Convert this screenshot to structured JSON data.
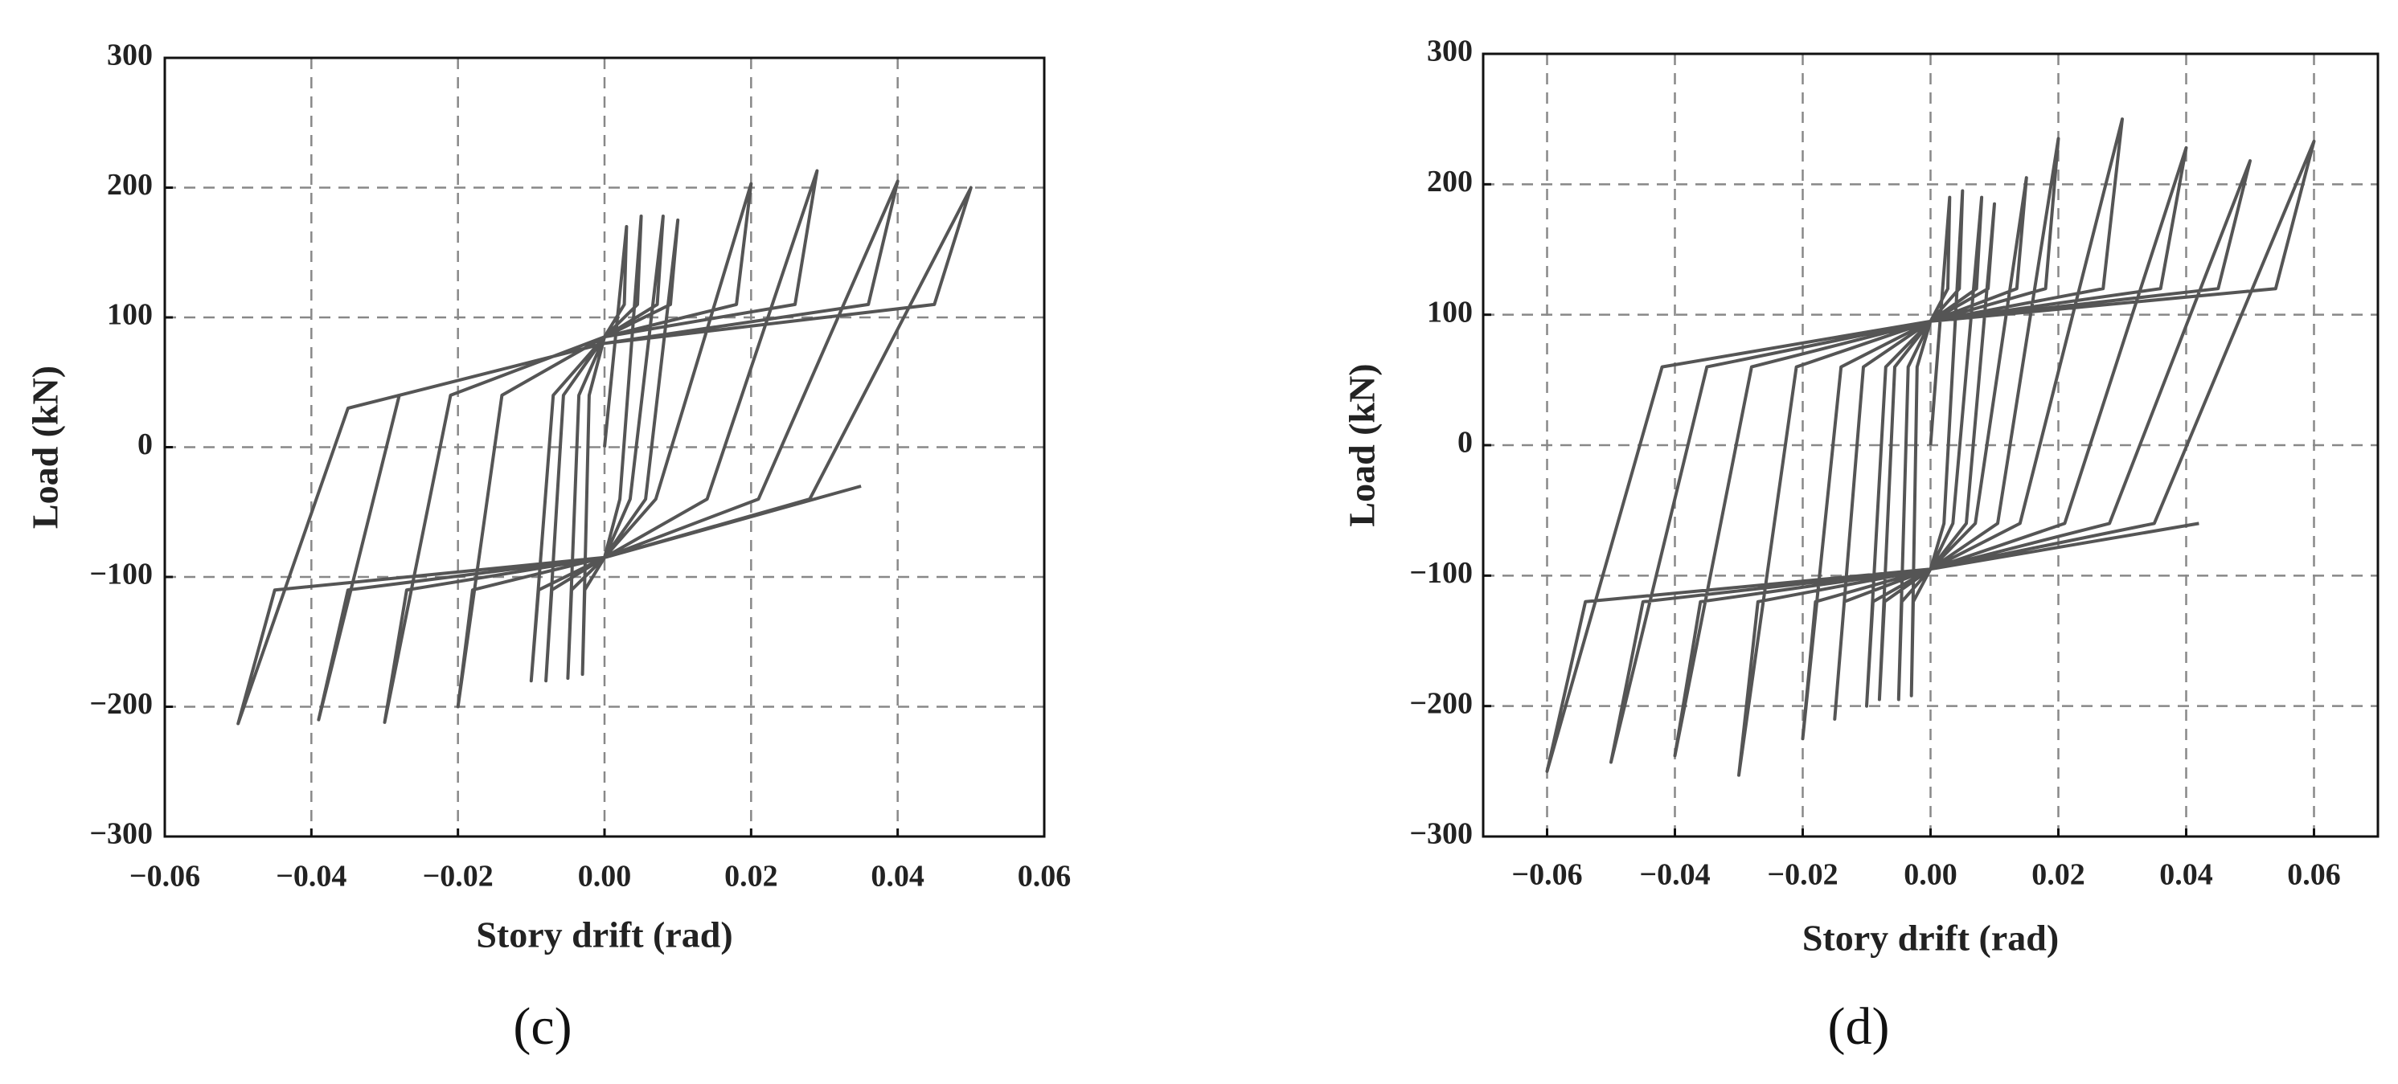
{
  "chart_data": [
    {
      "type": "line",
      "label": "(c)",
      "x_label": "Story drift (rad)",
      "y_label": "Load (kN)",
      "xlim": [
        -0.06,
        0.06
      ],
      "ylim": [
        -300,
        300
      ],
      "grid": true,
      "xticks": [
        {
          "value": -0.06,
          "label": "−0.06"
        },
        {
          "value": -0.04,
          "label": "−0.04"
        },
        {
          "value": -0.02,
          "label": "−0.02"
        },
        {
          "value": 0,
          "label": "0.00"
        },
        0.02,
        0.04,
        0.06
      ],
      "yticks": [
        {
          "value": -300,
          "label": "−300"
        },
        {
          "value": -200,
          "label": "−200"
        },
        {
          "value": -100,
          "label": "−100"
        },
        0,
        100,
        200,
        300
      ],
      "x": [
        0,
        0.003,
        0.0027,
        0,
        -0.0021,
        -0.003,
        -0.0027,
        0,
        0.0021,
        0.005,
        0.0045,
        0,
        -0.0035,
        -0.005,
        -0.0045,
        0,
        0.0035,
        0.008,
        0.0072,
        0,
        -0.0056,
        -0.008,
        -0.0072,
        0,
        0.0056,
        0.01,
        0.009,
        0,
        -0.007,
        -0.01,
        -0.009,
        0,
        0.007,
        0.02,
        0.018,
        0,
        -0.014,
        -0.02,
        -0.018,
        0,
        0.014,
        0.029,
        0.026,
        0,
        -0.021,
        -0.03,
        -0.027,
        0,
        0.021,
        0.04,
        0.036,
        0,
        -0.028,
        -0.039,
        -0.035,
        0,
        0.028,
        0.05,
        0.045,
        0,
        -0.035,
        -0.05,
        -0.045,
        0,
        0.035
      ],
      "series": [
        {
          "color": "#555555",
          "values": [
            0,
            170,
            110,
            85,
            40,
            -175,
            -110,
            -85,
            -40,
            178,
            110,
            85,
            40,
            -178,
            -110,
            -85,
            -40,
            178,
            110,
            85,
            40,
            -180,
            -110,
            -85,
            -40,
            175,
            110,
            85,
            40,
            -180,
            -110,
            -85,
            -40,
            203,
            110,
            85,
            40,
            -200,
            -110,
            -85,
            -40,
            213,
            110,
            85,
            40,
            -212,
            -110,
            -85,
            -40,
            205,
            110,
            80,
            40,
            -210,
            -110,
            -85,
            -40,
            200,
            110,
            80,
            30,
            -213,
            -110,
            -85,
            -30
          ]
        }
      ]
    },
    {
      "type": "line",
      "label": "(d)",
      "x_label": "Story drift (rad)",
      "y_label": "Load (kN)",
      "xlim": [
        -0.07,
        0.07
      ],
      "ylim": [
        -300,
        300
      ],
      "grid": true,
      "xticks": [
        {
          "value": -0.06,
          "label": "−0.06"
        },
        {
          "value": -0.04,
          "label": "−0.04"
        },
        {
          "value": -0.02,
          "label": "−0.02"
        },
        {
          "value": 0,
          "label": "0.00"
        },
        0.02,
        0.04,
        0.06
      ],
      "yticks": [
        {
          "value": -300,
          "label": "−300"
        },
        {
          "value": -200,
          "label": "−200"
        },
        {
          "value": -100,
          "label": "−100"
        },
        0,
        100,
        200,
        300
      ],
      "x": [
        0,
        0.003,
        0.0027,
        0,
        -0.0021,
        -0.003,
        -0.0027,
        0,
        0.0021,
        0.005,
        0.0045,
        0,
        -0.0035,
        -0.005,
        -0.0045,
        0,
        0.0035,
        0.008,
        0.0072,
        0,
        -0.0056,
        -0.008,
        -0.0072,
        0,
        0.0056,
        0.01,
        0.009,
        0,
        -0.007,
        -0.01,
        -0.009,
        0,
        0.007,
        0.015,
        0.0135,
        0,
        -0.0105,
        -0.015,
        -0.0135,
        0,
        0.0105,
        0.02,
        0.018,
        0,
        -0.014,
        -0.02,
        -0.018,
        0,
        0.014,
        0.03,
        0.027,
        0,
        -0.021,
        -0.03,
        -0.027,
        0,
        0.021,
        0.04,
        0.036,
        0,
        -0.028,
        -0.04,
        -0.036,
        0,
        0.028,
        0.05,
        0.045,
        0,
        -0.035,
        -0.05,
        -0.045,
        0,
        0.035,
        0.06,
        0.054,
        0,
        -0.042,
        -0.06,
        -0.054,
        0,
        0.042
      ],
      "series": [
        {
          "color": "#555555",
          "values": [
            0,
            190,
            120,
            95,
            60,
            -192,
            -120,
            -95,
            -60,
            195,
            120,
            95,
            60,
            -195,
            -120,
            -95,
            -60,
            190,
            120,
            95,
            60,
            -195,
            -120,
            -95,
            -60,
            185,
            120,
            95,
            60,
            -200,
            -120,
            -95,
            -60,
            205,
            120,
            95,
            60,
            -210,
            -120,
            -95,
            -60,
            235,
            120,
            95,
            60,
            -225,
            -120,
            -95,
            -60,
            250,
            120,
            95,
            60,
            -253,
            -120,
            -95,
            -60,
            228,
            120,
            95,
            60,
            -238,
            -120,
            -95,
            -60,
            218,
            120,
            95,
            60,
            -243,
            -120,
            -95,
            -60,
            233,
            120,
            95,
            60,
            -250,
            -120,
            -95,
            -60
          ]
        }
      ]
    }
  ]
}
